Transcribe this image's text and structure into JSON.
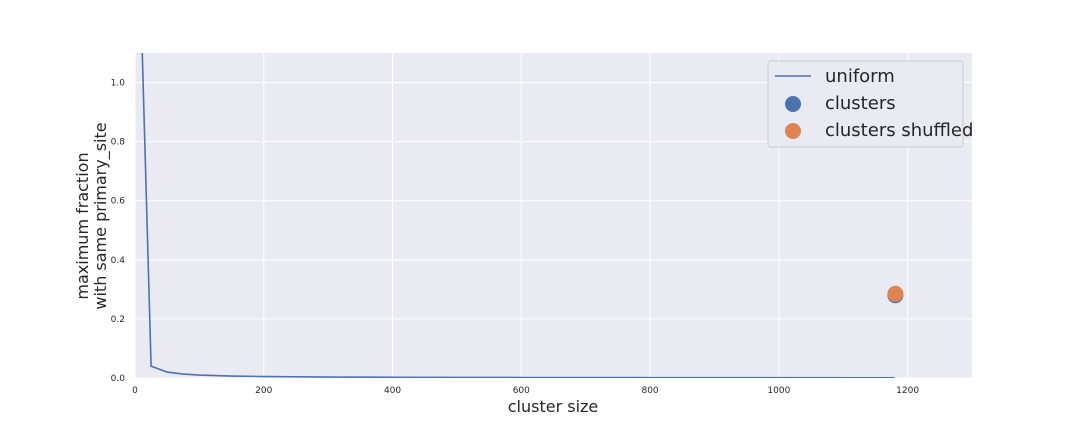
{
  "chart_data": {
    "type": "line",
    "title": "",
    "xlabel": "cluster size",
    "ylabel_lines": [
      "maximum fraction",
      "with same primary_site"
    ],
    "xlim": [
      0,
      1300
    ],
    "ylim": [
      0,
      1.1
    ],
    "x_ticks": [
      0,
      200,
      400,
      600,
      800,
      1000,
      1200
    ],
    "y_ticks": [
      0.0,
      0.2,
      0.4,
      0.6,
      0.8,
      1.0
    ],
    "x_tick_labels": [
      "0",
      "200",
      "400",
      "600",
      "800",
      "1000",
      "1200"
    ],
    "y_tick_labels": [
      "0.0",
      "0.2",
      "0.4",
      "0.6",
      "0.8",
      "1.0"
    ],
    "grid": true,
    "legend_position": "top-right",
    "colors": {
      "uniform": "#4c72b0",
      "clusters": "#4c72b0",
      "clusters_shuffled": "#dd8452",
      "plot_background": "#eaeaf2",
      "grid": "#ffffff"
    },
    "series": [
      {
        "name": "uniform",
        "kind": "line",
        "x": [
          10,
          25,
          50,
          75,
          100,
          150,
          200,
          300,
          400,
          500,
          600,
          800,
          1000,
          1180
        ],
        "y": [
          1.2,
          0.04,
          0.02,
          0.0133,
          0.01,
          0.0067,
          0.005,
          0.0033,
          0.0025,
          0.002,
          0.0017,
          0.0013,
          0.001,
          0.0008
        ]
      },
      {
        "name": "clusters",
        "kind": "scatter",
        "x": [
          1181
        ],
        "y": [
          0.28
        ]
      },
      {
        "name": "clusters shuffled",
        "kind": "scatter",
        "x": [
          1181
        ],
        "y": [
          0.285
        ]
      }
    ],
    "legend": [
      "uniform",
      "clusters",
      "clusters shuffled"
    ]
  }
}
